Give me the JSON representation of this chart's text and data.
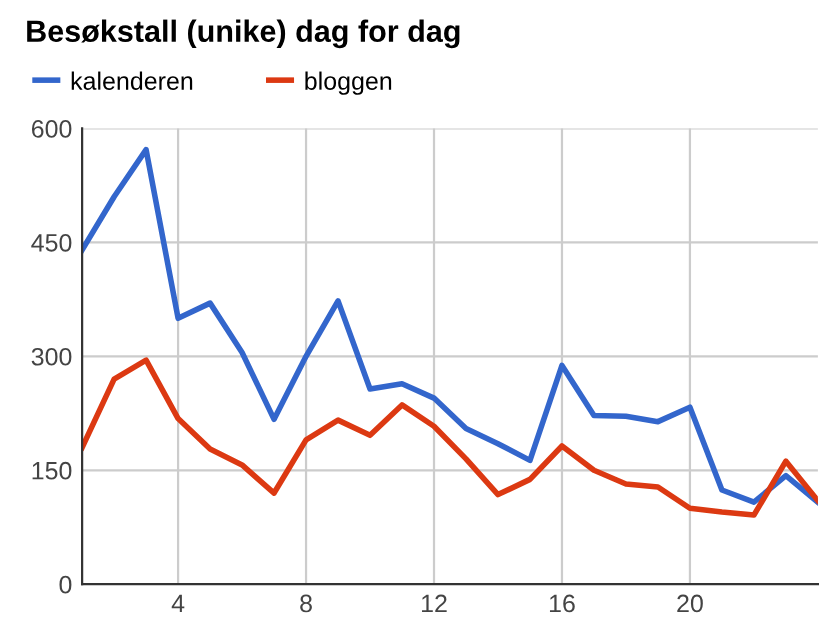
{
  "chart_data": {
    "type": "line",
    "title": "Besøkstall (unike) dag for dag",
    "x": [
      1,
      2,
      3,
      4,
      5,
      6,
      7,
      8,
      9,
      10,
      11,
      12,
      13,
      14,
      15,
      16,
      17,
      18,
      19,
      20,
      21,
      22,
      23,
      24
    ],
    "series": [
      {
        "name": "kalenderen",
        "color": "#3366cc",
        "values": [
          440,
          510,
          572,
          350,
          370,
          305,
          217,
          300,
          373,
          257,
          264,
          245,
          205,
          185,
          163,
          288,
          222,
          221,
          214,
          233,
          124,
          108,
          143,
          108
        ]
      },
      {
        "name": "bloggen",
        "color": "#dc3912",
        "values": [
          180,
          270,
          295,
          218,
          178,
          157,
          120,
          190,
          216,
          196,
          236,
          208,
          165,
          118,
          138,
          182,
          150,
          132,
          128,
          100,
          95,
          91,
          162,
          110
        ]
      }
    ],
    "xlim": [
      1,
      24
    ],
    "xticks": [
      4,
      8,
      12,
      16,
      20
    ],
    "ylim": [
      0,
      600
    ],
    "yticks": [
      0,
      150,
      300,
      450,
      600
    ],
    "grid": true,
    "legend": "top left",
    "marker": "none",
    "line_style": "solid"
  }
}
